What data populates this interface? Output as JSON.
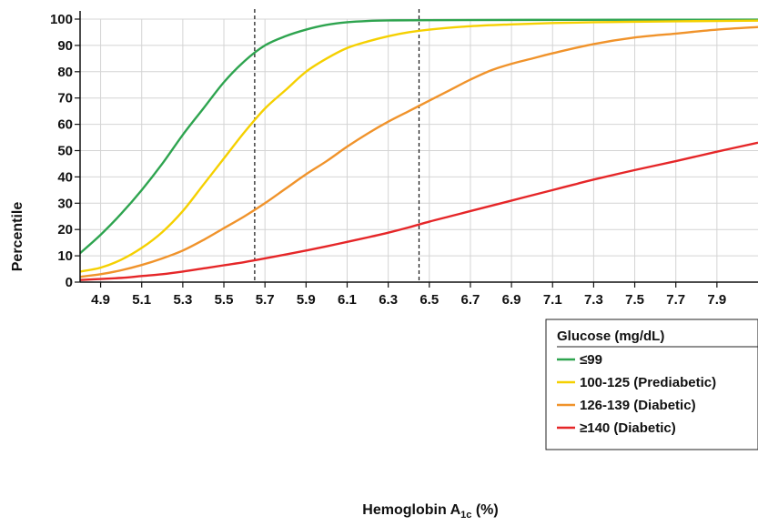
{
  "chart_data": {
    "type": "line",
    "title": "",
    "xlabel": "Hemoglobin A",
    "xlabel_sub": "1c",
    "xlabel_suffix": " (%)",
    "ylabel": "Percentile",
    "xlim": [
      4.8,
      8.1
    ],
    "ylim": [
      0,
      100
    ],
    "x_ticks": [
      4.9,
      5.1,
      5.3,
      5.5,
      5.7,
      5.9,
      6.1,
      6.3,
      6.5,
      6.7,
      6.9,
      7.1,
      7.3,
      7.5,
      7.7,
      7.9
    ],
    "x_tick_labels": [
      "4.9",
      "5.1",
      "5.3",
      "5.5",
      "5.7",
      "5.9",
      "6.1",
      "6.3",
      "6.5",
      "6.7",
      "6.9",
      "7.1",
      "7.3",
      "7.5",
      "7.7",
      "7.9"
    ],
    "y_ticks": [
      0,
      10,
      20,
      30,
      40,
      50,
      60,
      70,
      80,
      90,
      100
    ],
    "y_tick_labels": [
      "0",
      "10",
      "20",
      "30",
      "40",
      "50",
      "60",
      "70",
      "80",
      "90",
      "100"
    ],
    "grid": true,
    "reference_lines_x": [
      5.65,
      6.45
    ],
    "legend": {
      "title": "Glucose (mg/dL)",
      "position": "bottom-right"
    },
    "series": [
      {
        "name": "≤99",
        "color": "#2ea44f",
        "points": [
          [
            4.8,
            11
          ],
          [
            4.9,
            18
          ],
          [
            5.0,
            26
          ],
          [
            5.1,
            35
          ],
          [
            5.2,
            45
          ],
          [
            5.3,
            56
          ],
          [
            5.4,
            66
          ],
          [
            5.5,
            76
          ],
          [
            5.6,
            84
          ],
          [
            5.7,
            90
          ],
          [
            5.8,
            93.5
          ],
          [
            5.9,
            96
          ],
          [
            6.0,
            97.8
          ],
          [
            6.1,
            98.8
          ],
          [
            6.2,
            99.3
          ],
          [
            6.3,
            99.5
          ],
          [
            6.5,
            99.6
          ],
          [
            7.0,
            99.7
          ],
          [
            8.1,
            99.8
          ]
        ]
      },
      {
        "name": "100-125 (Prediabetic)",
        "color": "#f5d000",
        "points": [
          [
            4.8,
            4
          ],
          [
            4.9,
            5.5
          ],
          [
            5.0,
            8.5
          ],
          [
            5.1,
            13
          ],
          [
            5.2,
            19
          ],
          [
            5.3,
            27
          ],
          [
            5.4,
            37
          ],
          [
            5.5,
            47
          ],
          [
            5.6,
            57
          ],
          [
            5.7,
            66
          ],
          [
            5.8,
            73
          ],
          [
            5.9,
            80
          ],
          [
            6.0,
            85
          ],
          [
            6.1,
            89
          ],
          [
            6.2,
            91.5
          ],
          [
            6.3,
            93.5
          ],
          [
            6.4,
            95
          ],
          [
            6.5,
            96
          ],
          [
            6.7,
            97.3
          ],
          [
            6.9,
            98
          ],
          [
            7.1,
            98.5
          ],
          [
            7.3,
            98.8
          ],
          [
            7.5,
            99
          ],
          [
            7.9,
            99.3
          ],
          [
            8.1,
            99.4
          ]
        ]
      },
      {
        "name": "126-139 (Diabetic)",
        "color": "#f0932b",
        "points": [
          [
            4.8,
            2
          ],
          [
            4.9,
            3
          ],
          [
            5.0,
            4.5
          ],
          [
            5.1,
            6.5
          ],
          [
            5.2,
            9
          ],
          [
            5.3,
            12
          ],
          [
            5.4,
            16
          ],
          [
            5.5,
            20.5
          ],
          [
            5.6,
            25
          ],
          [
            5.7,
            30
          ],
          [
            5.8,
            35.5
          ],
          [
            5.9,
            41
          ],
          [
            6.0,
            46
          ],
          [
            6.1,
            51.5
          ],
          [
            6.2,
            56.5
          ],
          [
            6.3,
            61
          ],
          [
            6.4,
            65
          ],
          [
            6.5,
            69
          ],
          [
            6.6,
            73
          ],
          [
            6.7,
            77
          ],
          [
            6.8,
            80.5
          ],
          [
            6.9,
            83
          ],
          [
            7.0,
            85
          ],
          [
            7.1,
            87
          ],
          [
            7.3,
            90.5
          ],
          [
            7.5,
            93
          ],
          [
            7.7,
            94.5
          ],
          [
            7.9,
            96
          ],
          [
            8.1,
            97
          ]
        ]
      },
      {
        "name": "≥140 (Diabetic)",
        "color": "#e52628",
        "points": [
          [
            4.8,
            0.8
          ],
          [
            4.9,
            1.2
          ],
          [
            5.0,
            1.6
          ],
          [
            5.1,
            2.3
          ],
          [
            5.2,
            3
          ],
          [
            5.3,
            4
          ],
          [
            5.4,
            5.2
          ],
          [
            5.5,
            6.4
          ],
          [
            5.6,
            7.6
          ],
          [
            5.7,
            9
          ],
          [
            5.8,
            10.5
          ],
          [
            5.9,
            12
          ],
          [
            6.0,
            13.6
          ],
          [
            6.1,
            15.3
          ],
          [
            6.2,
            17
          ],
          [
            6.3,
            18.8
          ],
          [
            6.4,
            20.8
          ],
          [
            6.5,
            23
          ],
          [
            6.6,
            25
          ],
          [
            6.7,
            27
          ],
          [
            6.8,
            29
          ],
          [
            6.9,
            31
          ],
          [
            7.0,
            33
          ],
          [
            7.1,
            35
          ],
          [
            7.2,
            37
          ],
          [
            7.3,
            39
          ],
          [
            7.5,
            42.6
          ],
          [
            7.7,
            46
          ],
          [
            7.9,
            49.6
          ],
          [
            8.1,
            53
          ]
        ]
      }
    ]
  }
}
